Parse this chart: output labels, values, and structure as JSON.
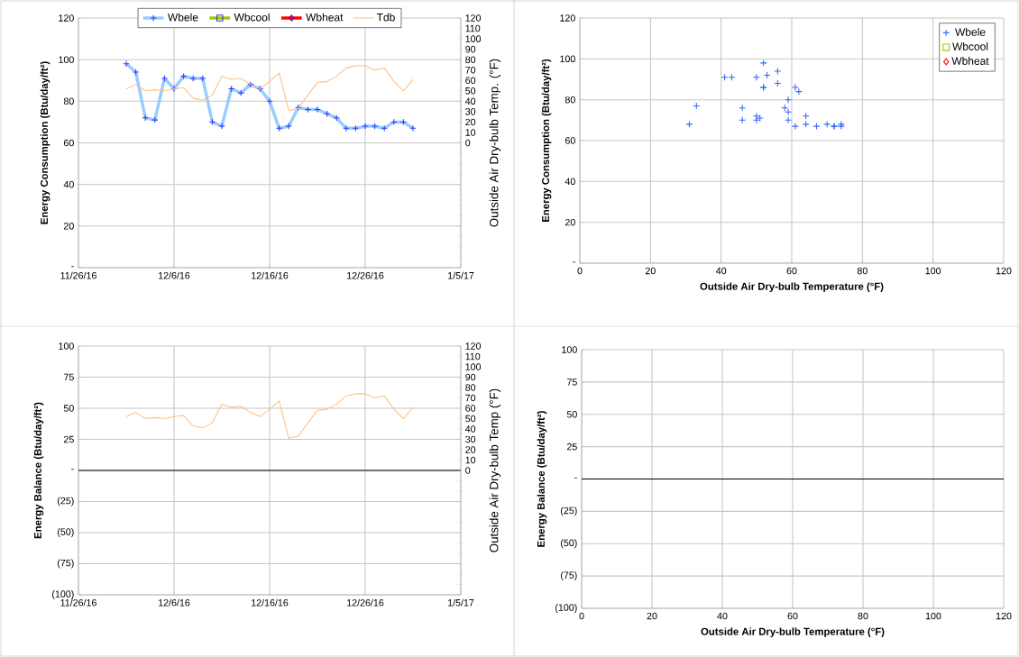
{
  "chart_data": [
    {
      "type": "line",
      "ylabel": "Energy Consumption (Btu/day/ft²)",
      "y2label": "Outside Air Dry-bulb Temp. (°F)",
      "x": [
        "2016-12-01",
        "2016-12-02",
        "2016-12-03",
        "2016-12-04",
        "2016-12-05",
        "2016-12-06",
        "2016-12-07",
        "2016-12-08",
        "2016-12-09",
        "2016-12-10",
        "2016-12-11",
        "2016-12-12",
        "2016-12-13",
        "2016-12-14",
        "2016-12-15",
        "2016-12-16",
        "2016-12-17",
        "2016-12-18",
        "2016-12-19",
        "2016-12-20",
        "2016-12-21",
        "2016-12-22",
        "2016-12-23",
        "2016-12-24",
        "2016-12-25",
        "2016-12-26",
        "2016-12-27",
        "2016-12-28",
        "2016-12-29",
        "2016-12-30",
        "2016-12-31"
      ],
      "xlim": [
        "2016-11-26",
        "2017-01-05"
      ],
      "xticks": [
        {
          "value": "2016-11-26",
          "label": "11/26/16"
        },
        {
          "value": "2016-12-06",
          "label": "12/6/16"
        },
        {
          "value": "2016-12-16",
          "label": "12/16/16"
        },
        {
          "value": "2016-12-26",
          "label": "12/26/16"
        },
        {
          "value": "2017-01-05",
          "label": "1/5/17"
        }
      ],
      "ylim": [
        0,
        120
      ],
      "yticks": [
        {
          "value": 0,
          "label": "-"
        },
        20,
        40,
        60,
        80,
        100,
        120
      ],
      "y2lim": [
        -120,
        120
      ],
      "y2ticks": [
        {
          "value": -120,
          "label": null
        },
        {
          "value": -110,
          "label": null
        },
        {
          "value": -100,
          "label": null
        },
        {
          "value": -90,
          "label": null
        },
        {
          "value": -80,
          "label": null
        },
        {
          "value": -70,
          "label": null
        },
        {
          "value": -60,
          "label": null
        },
        {
          "value": -50,
          "label": null
        },
        {
          "value": -40,
          "label": null
        },
        {
          "value": -30,
          "label": null
        },
        {
          "value": -20,
          "label": null
        },
        {
          "value": -10,
          "label": null
        },
        0,
        10,
        20,
        30,
        40,
        50,
        60,
        70,
        80,
        90,
        100,
        110,
        120
      ],
      "grid": true,
      "legend": "top",
      "series": [
        {
          "name": "Wbele",
          "color": "#99ccff",
          "marker": "cross",
          "values": [
            98,
            94,
            72,
            71,
            91,
            86,
            92,
            91,
            91,
            70,
            68,
            86,
            84,
            88,
            86,
            80,
            67,
            68,
            77,
            76,
            76,
            74,
            72,
            67,
            67,
            68,
            68,
            67,
            70,
            70,
            67
          ]
        },
        {
          "name": "Wbcool",
          "color": "#99cc00",
          "marker": "square",
          "values": [
            null,
            null,
            null,
            null,
            null,
            null,
            null,
            null,
            null,
            null,
            null,
            null,
            null,
            null,
            null,
            null,
            null,
            null,
            null,
            null,
            null,
            null,
            null,
            null,
            null,
            null,
            null,
            null,
            null,
            null,
            null
          ]
        },
        {
          "name": "Wbheat",
          "color": "#ff0000",
          "marker": "diamond",
          "values": [
            null,
            null,
            null,
            null,
            null,
            null,
            null,
            null,
            null,
            null,
            null,
            null,
            null,
            null,
            null,
            null,
            null,
            null,
            null,
            null,
            null,
            null,
            null,
            null,
            null,
            null,
            null,
            null,
            null,
            null,
            null
          ]
        },
        {
          "name": "Tdb",
          "color": "#ffc080",
          "marker": "none",
          "axis": "y2",
          "values": [
            52,
            56,
            50,
            51,
            50,
            52,
            53,
            43,
            41,
            46,
            64,
            61,
            62,
            56,
            52,
            59,
            67,
            31,
            33,
            46,
            58,
            59,
            64,
            72,
            74,
            74,
            70,
            72,
            59,
            50,
            61
          ]
        }
      ]
    },
    {
      "type": "scatter",
      "xlabel": "Outside Air Dry-bulb Temperature (°F)",
      "ylabel": "Energy Consumption (Btu/day/ft²)",
      "x": [
        52,
        56,
        50,
        51,
        50,
        52,
        53,
        43,
        41,
        46,
        64,
        61,
        62,
        56,
        52,
        59,
        67,
        31,
        33,
        46,
        58,
        59,
        64,
        72,
        74,
        74,
        70,
        72,
        59,
        50,
        61
      ],
      "xlim": [
        0,
        120
      ],
      "xticks": [
        0,
        20,
        40,
        60,
        80,
        100,
        120
      ],
      "ylim": [
        0,
        120
      ],
      "yticks": [
        {
          "value": 0,
          "label": "-"
        },
        20,
        40,
        60,
        80,
        100,
        120
      ],
      "grid": true,
      "legend": "top right",
      "series": [
        {
          "name": "Wbele",
          "color": "#3366ff",
          "marker": "cross",
          "values": [
            98,
            94,
            72,
            71,
            91,
            86,
            92,
            91,
            91,
            70,
            68,
            86,
            84,
            88,
            86,
            80,
            67,
            68,
            77,
            76,
            76,
            74,
            72,
            67,
            67,
            68,
            68,
            67,
            70,
            70,
            67
          ]
        },
        {
          "name": "Wbcool",
          "color": "#99cc00",
          "marker": "square",
          "values": [
            null,
            null,
            null,
            null,
            null,
            null,
            null,
            null,
            null,
            null,
            null,
            null,
            null,
            null,
            null,
            null,
            null,
            null,
            null,
            null,
            null,
            null,
            null,
            null,
            null,
            null,
            null,
            null,
            null,
            null,
            null
          ]
        },
        {
          "name": "Wbheat",
          "color": "#ff0000",
          "marker": "diamond",
          "values": [
            null,
            null,
            null,
            null,
            null,
            null,
            null,
            null,
            null,
            null,
            null,
            null,
            null,
            null,
            null,
            null,
            null,
            null,
            null,
            null,
            null,
            null,
            null,
            null,
            null,
            null,
            null,
            null,
            null,
            null,
            null
          ]
        }
      ]
    },
    {
      "type": "line",
      "ylabel": "Energy Balance (Btu/day/ft²)",
      "y2label": "Outside Air Dry-bulb Temp (°F)",
      "x": [
        "2016-12-01",
        "2016-12-02",
        "2016-12-03",
        "2016-12-04",
        "2016-12-05",
        "2016-12-06",
        "2016-12-07",
        "2016-12-08",
        "2016-12-09",
        "2016-12-10",
        "2016-12-11",
        "2016-12-12",
        "2016-12-13",
        "2016-12-14",
        "2016-12-15",
        "2016-12-16",
        "2016-12-17",
        "2016-12-18",
        "2016-12-19",
        "2016-12-20",
        "2016-12-21",
        "2016-12-22",
        "2016-12-23",
        "2016-12-24",
        "2016-12-25",
        "2016-12-26",
        "2016-12-27",
        "2016-12-28",
        "2016-12-29",
        "2016-12-30",
        "2016-12-31"
      ],
      "xlim": [
        "2016-11-26",
        "2017-01-05"
      ],
      "xticks": [
        {
          "value": "2016-11-26",
          "label": "11/26/16"
        },
        {
          "value": "2016-12-06",
          "label": "12/6/16"
        },
        {
          "value": "2016-12-16",
          "label": "12/16/16"
        },
        {
          "value": "2016-12-26",
          "label": "12/26/16"
        },
        {
          "value": "2017-01-05",
          "label": "1/5/17"
        }
      ],
      "ylim": [
        -100,
        100
      ],
      "yticks": [
        {
          "value": -100,
          "label": "(100)"
        },
        {
          "value": -75,
          "label": "(75)"
        },
        {
          "value": -50,
          "label": "(50)"
        },
        {
          "value": -25,
          "label": "(25)"
        },
        {
          "value": 0,
          "label": "-"
        },
        25,
        50,
        75,
        100
      ],
      "y2lim": [
        -120,
        120
      ],
      "y2ticks": [
        {
          "value": -120,
          "label": null
        },
        {
          "value": -110,
          "label": null
        },
        {
          "value": -100,
          "label": null
        },
        {
          "value": -90,
          "label": null
        },
        {
          "value": -80,
          "label": null
        },
        {
          "value": -70,
          "label": null
        },
        {
          "value": -60,
          "label": null
        },
        {
          "value": -50,
          "label": null
        },
        {
          "value": -40,
          "label": null
        },
        {
          "value": -30,
          "label": null
        },
        {
          "value": -20,
          "label": null
        },
        {
          "value": -10,
          "label": null
        },
        0,
        10,
        20,
        30,
        40,
        50,
        60,
        70,
        80,
        90,
        100,
        110,
        120
      ],
      "grid": true,
      "series": [
        {
          "color": "#ffc080",
          "marker": "none",
          "axis": "y2",
          "values": [
            52,
            56,
            50,
            51,
            50,
            52,
            53,
            43,
            41,
            46,
            64,
            61,
            62,
            56,
            52,
            59,
            67,
            31,
            33,
            46,
            58,
            59,
            64,
            72,
            74,
            74,
            70,
            72,
            59,
            50,
            61
          ]
        }
      ]
    },
    {
      "type": "scatter",
      "xlabel": "Outside Air Dry-bulb Temperature (°F)",
      "ylabel": "Energy Balance (Btu/day/ft²)",
      "xlim": [
        0,
        120
      ],
      "xticks": [
        0,
        20,
        40,
        60,
        80,
        100,
        120
      ],
      "ylim": [
        -100,
        100
      ],
      "yticks": [
        {
          "value": -100,
          "label": "(100)"
        },
        {
          "value": -75,
          "label": "(75)"
        },
        {
          "value": -50,
          "label": "(50)"
        },
        {
          "value": -25,
          "label": "(25)"
        },
        {
          "value": 0,
          "label": "-"
        },
        25,
        50,
        75,
        100
      ],
      "grid": true
    }
  ]
}
